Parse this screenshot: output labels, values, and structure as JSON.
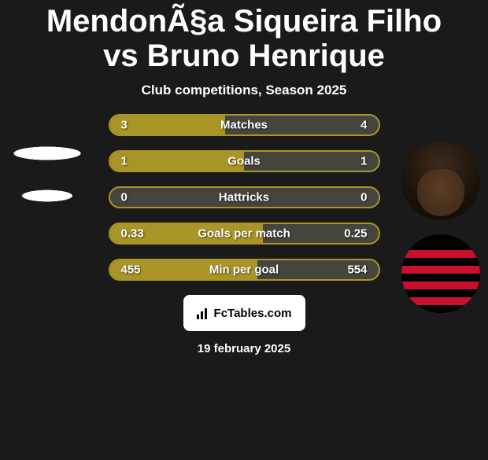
{
  "background_color": "#1a1a1a",
  "title": {
    "text": "MendonÃ§a Siqueira Filho vs Bruno Henrique",
    "fontsize": 40,
    "color": "#ffffff"
  },
  "subtitle": {
    "text": "Club competitions, Season 2025",
    "fontsize": 17,
    "color": "#ffffff"
  },
  "stats": {
    "bar_bg_color": "#46453d",
    "fill_color": "#a99527",
    "border_color": "#a99527",
    "value_fontsize": 15,
    "label_fontsize": 15,
    "rows": [
      {
        "label": "Matches",
        "left": "3",
        "right": "4",
        "fill_pct": 43
      },
      {
        "label": "Goals",
        "left": "1",
        "right": "1",
        "fill_pct": 50
      },
      {
        "label": "Hattricks",
        "left": "0",
        "right": "0",
        "fill_pct": 0
      },
      {
        "label": "Goals per match",
        "left": "0.33",
        "right": "0.25",
        "fill_pct": 57
      },
      {
        "label": "Min per goal",
        "left": "455",
        "right": "554",
        "fill_pct": 55
      }
    ]
  },
  "footer": {
    "brand": "FcTables.com",
    "date": "19 february 2025",
    "date_fontsize": 15
  },
  "avatars": {
    "right_player_name": "bruno-henrique-avatar",
    "right_club_name": "flamengo-crest",
    "club_colors": {
      "stripe_red": "#c8102e",
      "stripe_black": "#000000"
    }
  }
}
